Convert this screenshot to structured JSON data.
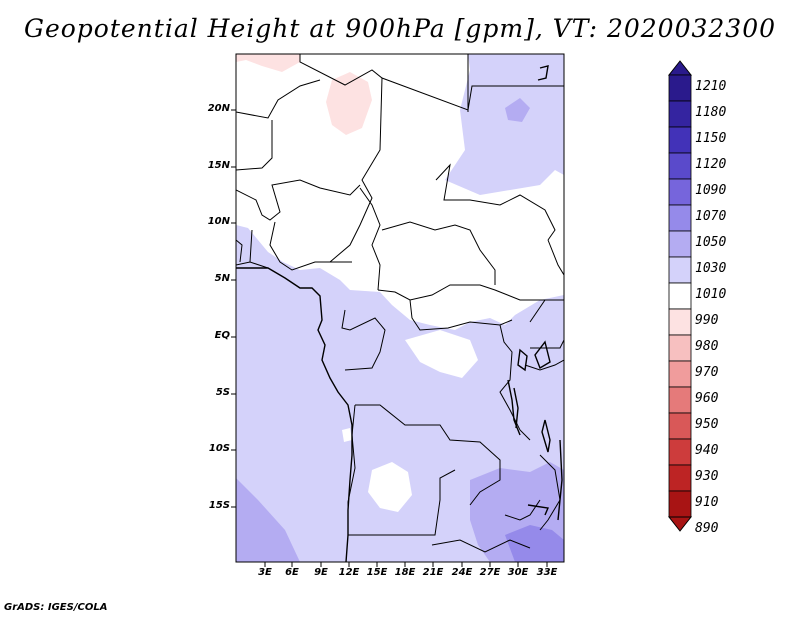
{
  "title": "Geopotential Height at 900hPa [gpm], VT: 2020032300",
  "footer": "GrADS: IGES/COLA",
  "map": {
    "lat_labels": [
      "20N",
      "15N",
      "10N",
      "5N",
      "EQ",
      "5S",
      "10S",
      "15S"
    ],
    "lon_labels": [
      "3E",
      "6E",
      "9E",
      "12E",
      "15E",
      "18E",
      "21E",
      "24E",
      "27E",
      "30E",
      "33E"
    ]
  },
  "colorbar": {
    "levels": [
      "1210",
      "1180",
      "1150",
      "1120",
      "1090",
      "1070",
      "1050",
      "1030",
      "1010",
      "990",
      "980",
      "970",
      "960",
      "950",
      "940",
      "930",
      "910",
      "890"
    ],
    "colors": {
      "top_arrow": "#2a1a8c",
      "boxes": [
        "#2a1a8c",
        "#3424a0",
        "#4232b8",
        "#5a4acb",
        "#7665dc",
        "#958aea",
        "#b4acf2",
        "#d4d2fa",
        "#ffffff",
        "#fde2e2",
        "#f7c0c0",
        "#f09c9c",
        "#e57a7a",
        "#d95858",
        "#cd3c3c",
        "#bd2424",
        "#a81414"
      ],
      "bottom_arrow": "#a81414"
    }
  },
  "colors": {
    "ocean_field": "#d4d2fa",
    "high_field": "#b4acf2",
    "higher_field": "#958aea",
    "land_white": "#ffffff",
    "low_field": "#fde2e2",
    "border": "#000000"
  }
}
